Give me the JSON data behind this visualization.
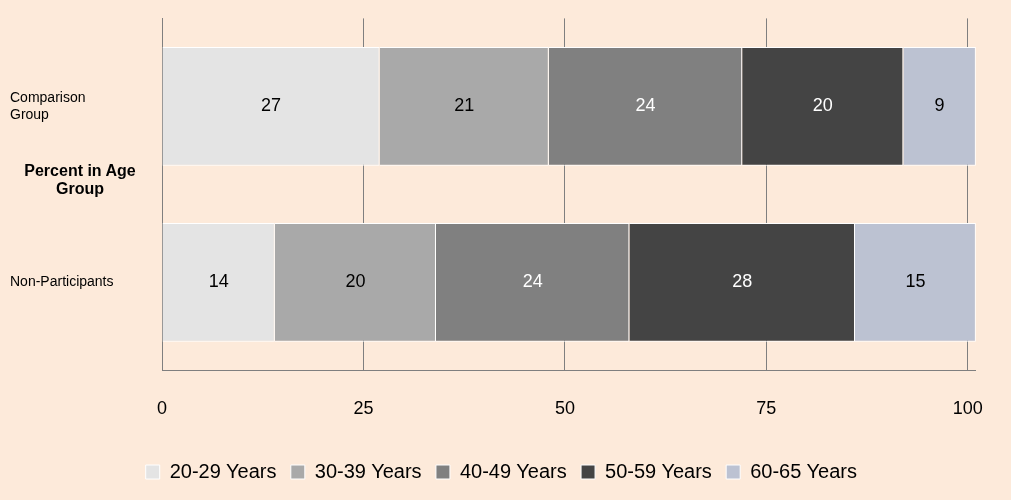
{
  "chart_data": {
    "type": "bar",
    "orientation": "horizontal",
    "stacked": true,
    "ylabel": "Percent in Age Group",
    "categories": [
      "Comparison Group",
      "Non-Participants"
    ],
    "series": [
      {
        "name": "20-29 Years",
        "color": "#e4e4e4",
        "values": [
          27,
          14
        ]
      },
      {
        "name": "30-39 Years",
        "color": "#a9a9a9",
        "values": [
          21,
          20
        ]
      },
      {
        "name": "40-49 Years",
        "color": "#808080",
        "values": [
          24,
          24
        ]
      },
      {
        "name": "50-59 Years",
        "color": "#444444",
        "values": [
          20,
          28
        ]
      },
      {
        "name": "60-65 Years",
        "color": "#bcc2d2",
        "values": [
          9,
          15
        ]
      }
    ],
    "xlim": [
      0,
      101
    ],
    "xticks": [
      0,
      25,
      50,
      75,
      100
    ],
    "grid": "x",
    "legend": "bottom",
    "data_labels": true
  }
}
